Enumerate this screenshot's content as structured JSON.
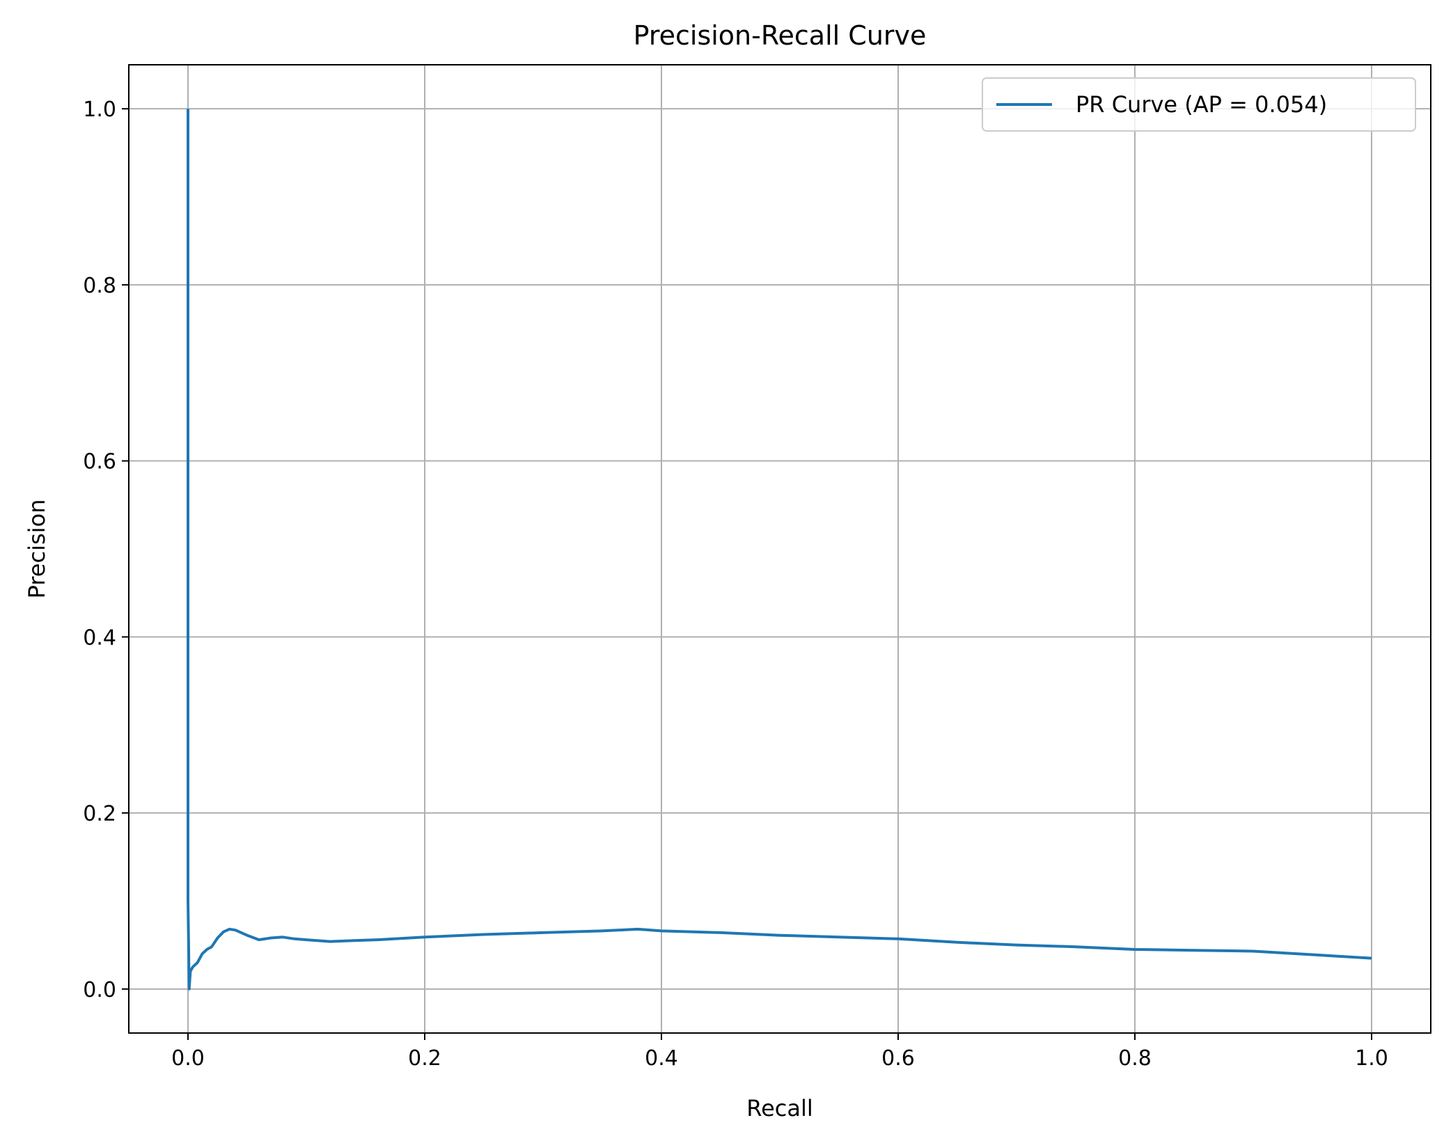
{
  "chart_data": {
    "type": "line",
    "title": "Precision-Recall Curve",
    "xlabel": "Recall",
    "ylabel": "Precision",
    "xlim": [
      -0.05,
      1.05
    ],
    "ylim": [
      -0.05,
      1.05
    ],
    "xticks": [
      0.0,
      0.2,
      0.4,
      0.6,
      0.8,
      1.0
    ],
    "yticks": [
      0.0,
      0.2,
      0.4,
      0.6,
      0.8,
      1.0
    ],
    "xtick_labels": [
      "0.0",
      "0.2",
      "0.4",
      "0.6",
      "0.8",
      "1.0"
    ],
    "ytick_labels": [
      "0.0",
      "0.2",
      "0.4",
      "0.6",
      "0.8",
      "1.0"
    ],
    "grid": true,
    "legend_position": "top-right",
    "series": [
      {
        "name": "PR Curve (AP = 0.054)",
        "color": "#1f77b4",
        "points": [
          [
            0.0,
            1.0
          ],
          [
            0.0,
            0.5
          ],
          [
            0.0,
            0.1
          ],
          [
            0.0005,
            0.05
          ],
          [
            0.001,
            0.0
          ],
          [
            0.002,
            0.02
          ],
          [
            0.004,
            0.025
          ],
          [
            0.008,
            0.03
          ],
          [
            0.012,
            0.04
          ],
          [
            0.016,
            0.045
          ],
          [
            0.02,
            0.048
          ],
          [
            0.025,
            0.058
          ],
          [
            0.03,
            0.065
          ],
          [
            0.035,
            0.068
          ],
          [
            0.04,
            0.067
          ],
          [
            0.05,
            0.061
          ],
          [
            0.06,
            0.056
          ],
          [
            0.07,
            0.058
          ],
          [
            0.08,
            0.059
          ],
          [
            0.09,
            0.057
          ],
          [
            0.1,
            0.056
          ],
          [
            0.12,
            0.054
          ],
          [
            0.14,
            0.055
          ],
          [
            0.16,
            0.056
          ],
          [
            0.2,
            0.059
          ],
          [
            0.25,
            0.062
          ],
          [
            0.3,
            0.064
          ],
          [
            0.35,
            0.066
          ],
          [
            0.38,
            0.068
          ],
          [
            0.4,
            0.066
          ],
          [
            0.45,
            0.064
          ],
          [
            0.5,
            0.061
          ],
          [
            0.55,
            0.059
          ],
          [
            0.6,
            0.057
          ],
          [
            0.65,
            0.053
          ],
          [
            0.7,
            0.05
          ],
          [
            0.75,
            0.048
          ],
          [
            0.8,
            0.045
          ],
          [
            0.85,
            0.044
          ],
          [
            0.9,
            0.043
          ],
          [
            0.95,
            0.039
          ],
          [
            1.0,
            0.035
          ]
        ]
      }
    ]
  }
}
